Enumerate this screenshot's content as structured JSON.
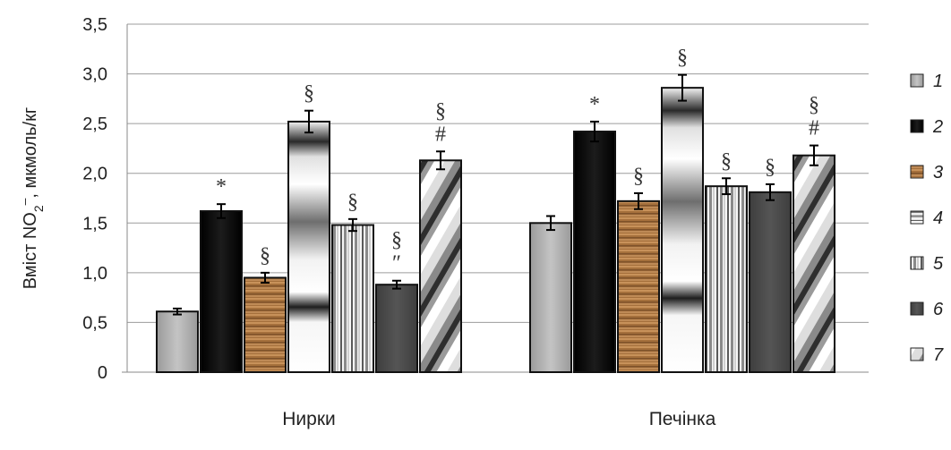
{
  "chart_data": {
    "type": "bar",
    "ylabel": {
      "prefix": "Вміст NO",
      "sub": "2",
      "sup": "–",
      "suffix": ", мкмоль/кг"
    },
    "ylim": [
      0,
      3.5
    ],
    "yticks": [
      "0",
      "0,5",
      "1,0",
      "1,5",
      "2,0",
      "2,5",
      "3,0",
      "3,5"
    ],
    "categories": [
      "Нирки",
      "Печінка"
    ],
    "grid": true,
    "legend_position": "right",
    "series": [
      {
        "name": "1",
        "values": [
          0.61,
          1.5
        ],
        "errors": [
          0.03,
          0.07
        ],
        "marks": [
          "",
          ""
        ]
      },
      {
        "name": "2",
        "values": [
          1.62,
          2.42
        ],
        "errors": [
          0.07,
          0.1
        ],
        "marks": [
          "*",
          "*"
        ]
      },
      {
        "name": "3",
        "values": [
          0.95,
          1.72
        ],
        "errors": [
          0.05,
          0.08
        ],
        "marks": [
          "§",
          "§"
        ]
      },
      {
        "name": "4",
        "values": [
          2.52,
          2.86
        ],
        "errors": [
          0.11,
          0.13
        ],
        "marks": [
          "§",
          "§"
        ]
      },
      {
        "name": "5",
        "values": [
          1.48,
          1.87
        ],
        "errors": [
          0.06,
          0.08
        ],
        "marks": [
          "§",
          "§"
        ]
      },
      {
        "name": "6",
        "values": [
          0.88,
          1.81
        ],
        "errors": [
          0.04,
          0.08
        ],
        "marks": [
          "§\n″",
          "§"
        ]
      },
      {
        "name": "7",
        "values": [
          2.13,
          2.18
        ],
        "errors": [
          0.09,
          0.1
        ],
        "marks": [
          "§\n#",
          "§\n#"
        ]
      }
    ]
  }
}
